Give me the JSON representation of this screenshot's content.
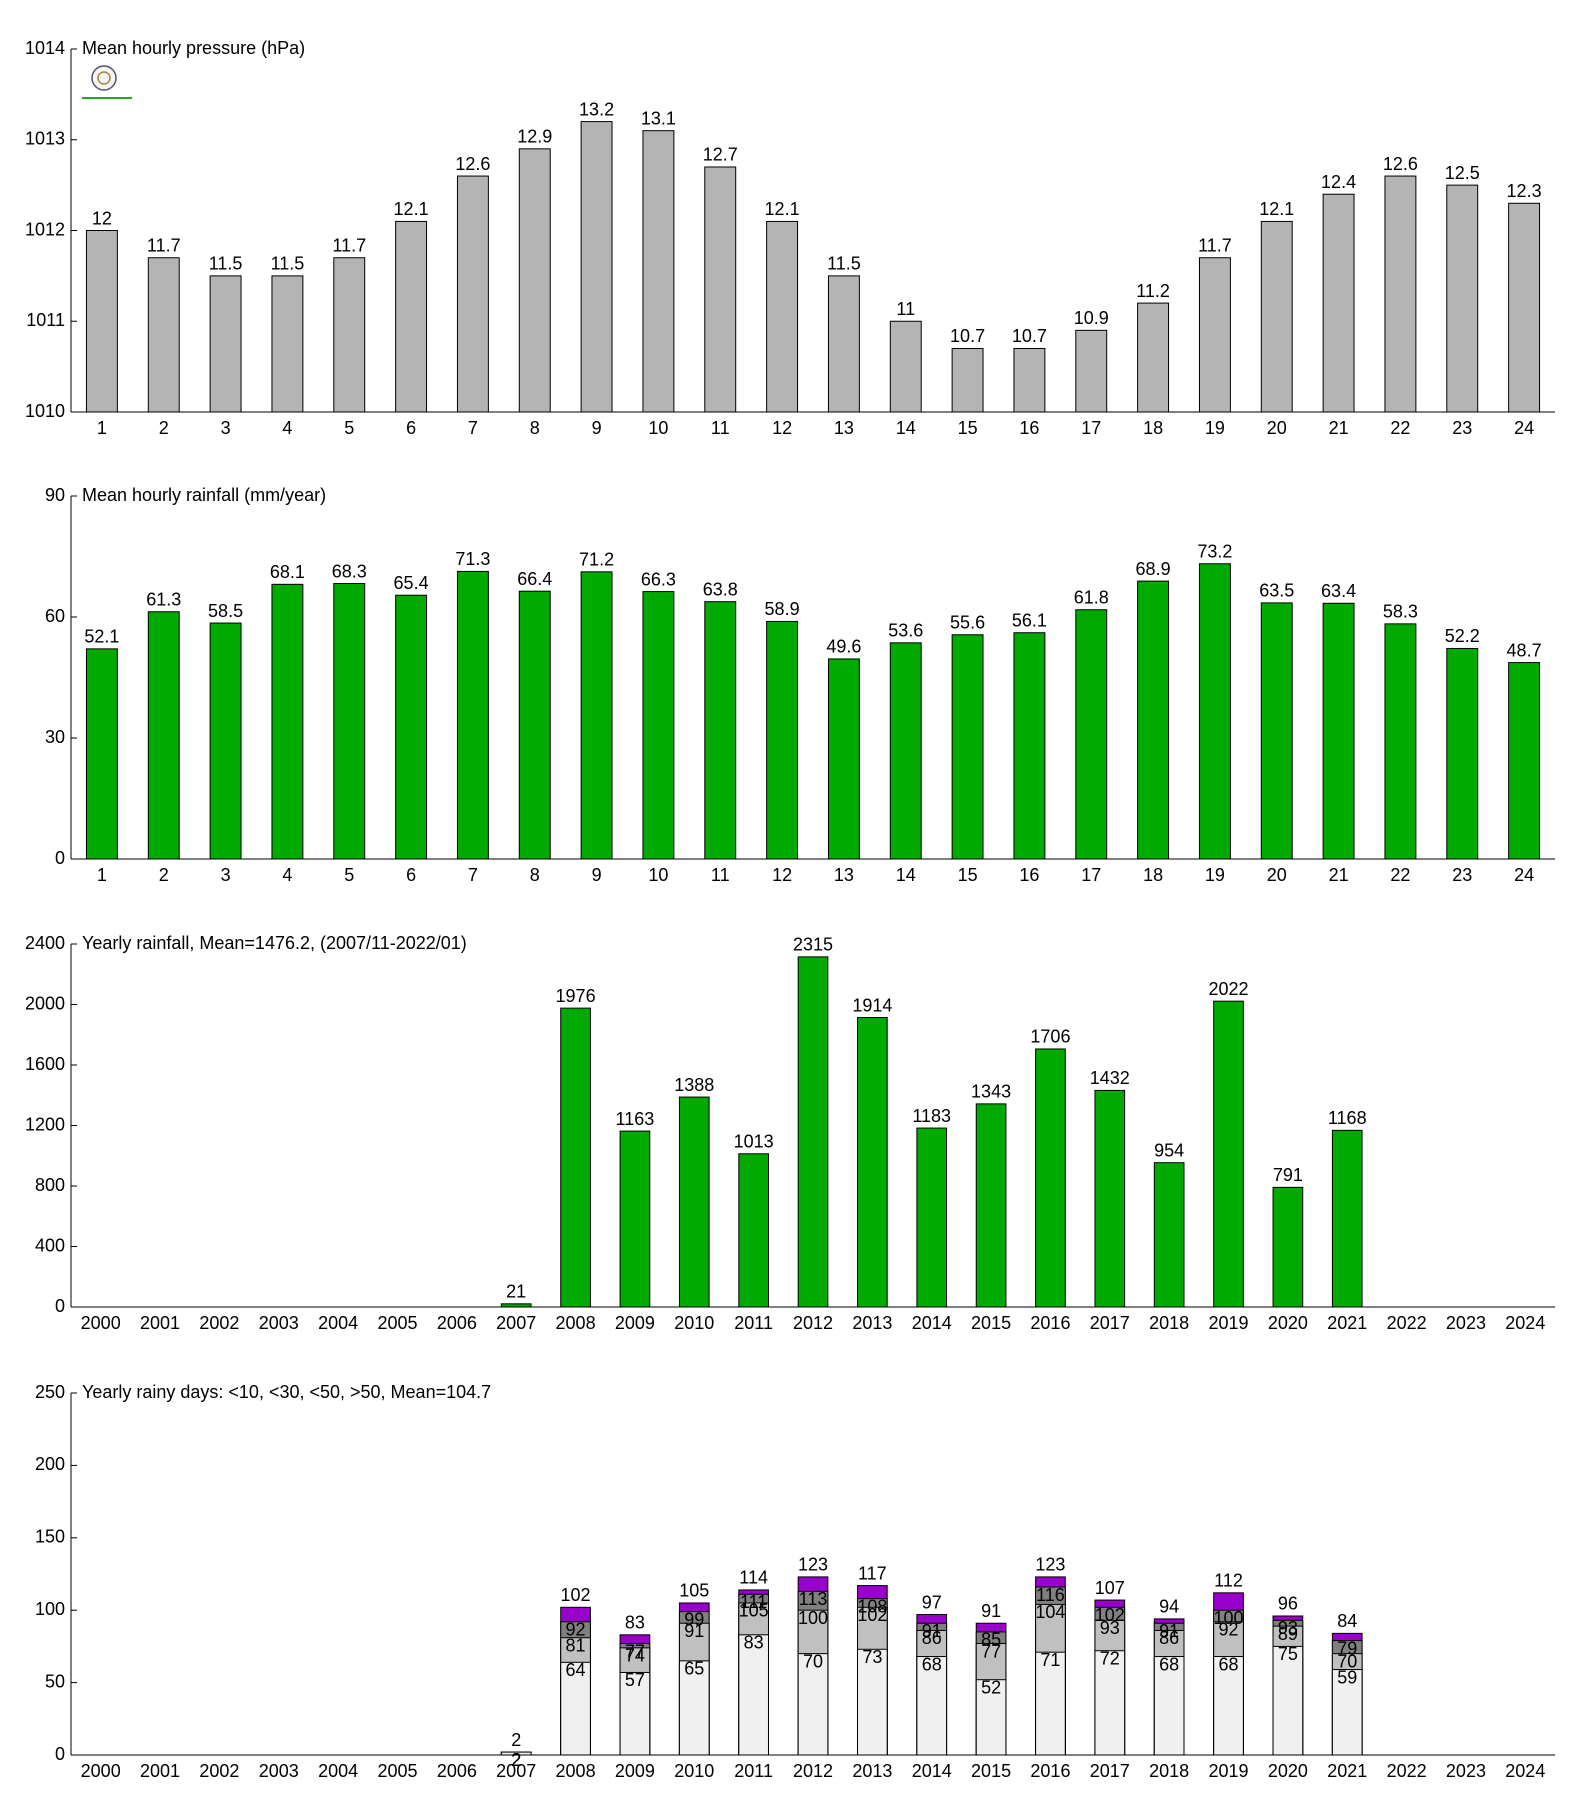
{
  "chart_data": [
    {
      "type": "bar",
      "title": "Mean hourly pressure (hPa)",
      "categories": [
        "1",
        "2",
        "3",
        "4",
        "5",
        "6",
        "7",
        "8",
        "9",
        "10",
        "11",
        "12",
        "13",
        "14",
        "15",
        "16",
        "17",
        "18",
        "19",
        "20",
        "21",
        "22",
        "23",
        "24"
      ],
      "values": [
        1012.0,
        1011.7,
        1011.5,
        1011.5,
        1011.7,
        1012.1,
        1012.6,
        1012.9,
        1013.2,
        1013.1,
        1012.7,
        1012.1,
        1011.5,
        1011.0,
        1010.7,
        1010.7,
        1010.9,
        1011.2,
        1011.7,
        1012.1,
        1012.4,
        1012.6,
        1012.5,
        1012.3
      ],
      "value_labels": [
        "12",
        "11.7",
        "11.5",
        "11.5",
        "11.7",
        "12.1",
        "12.6",
        "12.9",
        "13.2",
        "13.1",
        "12.7",
        "12.1",
        "11.5",
        "11",
        "10.7",
        "10.7",
        "10.9",
        "11.2",
        "11.7",
        "12.1",
        "12.4",
        "12.6",
        "12.5",
        "12.3"
      ],
      "color": "#b4b4b4",
      "ylim": [
        1010,
        1014
      ],
      "yticks": [
        1010,
        1011,
        1012,
        1013,
        1014
      ]
    },
    {
      "type": "bar",
      "title": "Mean hourly rainfall (mm/year)",
      "categories": [
        "1",
        "2",
        "3",
        "4",
        "5",
        "6",
        "7",
        "8",
        "9",
        "10",
        "11",
        "12",
        "13",
        "14",
        "15",
        "16",
        "17",
        "18",
        "19",
        "20",
        "21",
        "22",
        "23",
        "24"
      ],
      "values": [
        52.1,
        61.3,
        58.5,
        68.1,
        68.3,
        65.4,
        71.3,
        66.4,
        71.2,
        66.3,
        63.8,
        58.9,
        49.6,
        53.6,
        55.6,
        56.1,
        61.8,
        68.9,
        73.2,
        63.5,
        63.4,
        58.3,
        52.2,
        48.7
      ],
      "color": "#00aa00",
      "ylim": [
        0,
        90
      ],
      "yticks": [
        0,
        30,
        60,
        90
      ]
    },
    {
      "type": "bar",
      "title": "Yearly rainfall, Mean=1476.2, (2007/11-2022/01)",
      "categories": [
        "2000",
        "2001",
        "2002",
        "2003",
        "2004",
        "2005",
        "2006",
        "2007",
        "2008",
        "2009",
        "2010",
        "2011",
        "2012",
        "2013",
        "2014",
        "2015",
        "2016",
        "2017",
        "2018",
        "2019",
        "2020",
        "2021",
        "2022",
        "2023",
        "2024"
      ],
      "values": [
        null,
        null,
        null,
        null,
        null,
        null,
        null,
        21,
        1976,
        1163,
        1388,
        1013,
        2315,
        1914,
        1183,
        1343,
        1706,
        1432,
        954,
        2022,
        791,
        1168,
        null,
        null,
        null
      ],
      "color": "#00aa00",
      "ylim": [
        0,
        2400
      ],
      "yticks": [
        0,
        400,
        800,
        1200,
        1600,
        2000,
        2400
      ]
    },
    {
      "type": "bar",
      "title": "Yearly rainy days: <10, <30, <50, >50, Mean=104.7",
      "categories": [
        "2000",
        "2001",
        "2002",
        "2003",
        "2004",
        "2005",
        "2006",
        "2007",
        "2008",
        "2009",
        "2010",
        "2011",
        "2012",
        "2013",
        "2014",
        "2015",
        "2016",
        "2017",
        "2018",
        "2019",
        "2020",
        "2021",
        "2022",
        "2023",
        "2024"
      ],
      "series": [
        {
          "color": "#f0f0f0",
          "values": [
            null,
            null,
            null,
            null,
            null,
            null,
            null,
            2,
            64,
            57,
            65,
            83,
            70,
            73,
            68,
            52,
            71,
            72,
            68,
            68,
            75,
            59,
            null,
            null,
            null
          ]
        },
        {
          "color": "#c0c0c0",
          "values": [
            null,
            null,
            null,
            null,
            null,
            null,
            null,
            2,
            81,
            74,
            91,
            105,
            100,
            102,
            86,
            77,
            104,
            93,
            86,
            92,
            89,
            70,
            null,
            null,
            null
          ]
        },
        {
          "color": "#808080",
          "values": [
            null,
            null,
            null,
            null,
            null,
            null,
            null,
            2,
            92,
            77,
            99,
            111,
            113,
            108,
            91,
            85,
            116,
            102,
            91,
            100,
            93,
            79,
            null,
            null,
            null
          ]
        },
        {
          "color": "#9900cc",
          "values": [
            null,
            null,
            null,
            null,
            null,
            null,
            null,
            2,
            102,
            83,
            105,
            114,
            123,
            117,
            97,
            91,
            123,
            107,
            94,
            112,
            96,
            84,
            null,
            null,
            null
          ]
        }
      ],
      "ylim": [
        0,
        250
      ],
      "yticks": [
        0,
        50,
        100,
        150,
        200,
        250
      ]
    }
  ]
}
